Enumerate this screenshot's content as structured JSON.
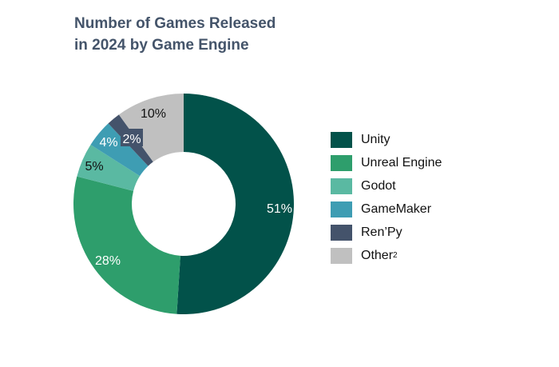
{
  "chart_data": {
    "type": "pie",
    "donut": true,
    "title_lines": [
      "Number of Games Released",
      "in 2024 by Game Engine"
    ],
    "categories": [
      "Unity",
      "Unreal Engine",
      "Godot",
      "GameMaker",
      "Ren’Py",
      "Other"
    ],
    "values": [
      51,
      28,
      5,
      4,
      2,
      10
    ],
    "labels": [
      "51%",
      "28%",
      "5%",
      "4%",
      "2%",
      "10%"
    ],
    "colors": [
      "#02524a",
      "#2e9e6c",
      "#5ab9a2",
      "#3e9db3",
      "#44536b",
      "#c0c0c0"
    ],
    "legend_other_superscript": "2",
    "legend_position": "right"
  }
}
